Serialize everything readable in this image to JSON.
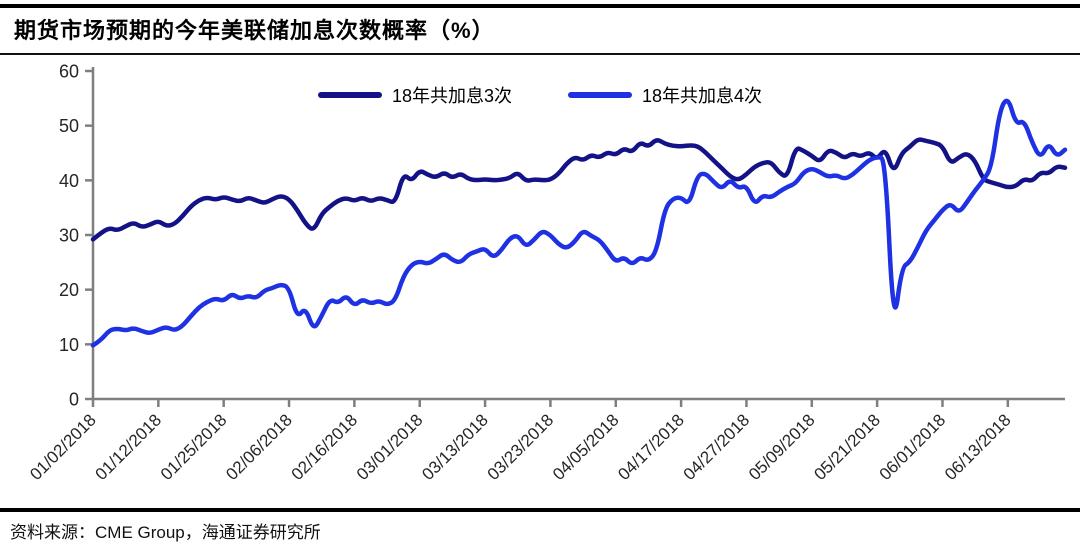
{
  "header": {
    "title": "期货市场预期的今年美联储加息次数概率（%）"
  },
  "source": {
    "label": "资料来源：",
    "text": "CME Group，海通证券研究所"
  },
  "chart_data": {
    "type": "line",
    "title": "期货市场预期的今年美联储加息次数概率（%）",
    "xlabel": "",
    "ylabel": "",
    "ylim": [
      0,
      60
    ],
    "yticks": [
      0,
      10,
      20,
      30,
      40,
      50,
      60
    ],
    "grid": false,
    "legend_position": "top-center",
    "axis_color": "#7f7f7f",
    "tick_label_color": "#262626",
    "x_tick_every": 8,
    "n_points": 120,
    "x_tick_labels": [
      "01/02/2018",
      "01/12/2018",
      "01/25/2018",
      "02/06/2018",
      "02/16/2018",
      "03/01/2018",
      "03/13/2018",
      "03/23/2018",
      "04/05/2018",
      "04/17/2018",
      "04/27/2018",
      "05/09/2018",
      "05/21/2018",
      "06/01/2018",
      "06/13/2018"
    ],
    "series": [
      {
        "name": "18年共加息3次",
        "color": "#131387",
        "values": [
          29.2,
          30.4,
          31.3,
          30.8,
          31.6,
          32.3,
          31.4,
          31.9,
          32.6,
          31.6,
          32.0,
          33.5,
          35.3,
          36.4,
          36.9,
          36.4,
          37.0,
          36.5,
          36.1,
          36.9,
          36.3,
          35.8,
          36.6,
          37.2,
          36.6,
          34.6,
          32.1,
          30.7,
          33.9,
          35.2,
          36.3,
          36.8,
          36.2,
          36.9,
          36.1,
          36.8,
          36.4,
          35.8,
          41.3,
          39.8,
          41.9,
          41.0,
          40.5,
          41.5,
          40.4,
          41.3,
          40.2,
          40.0,
          40.2,
          40.0,
          40.1,
          40.4,
          41.5,
          39.8,
          40.2,
          40.0,
          40.1,
          41.2,
          43.1,
          44.3,
          43.6,
          44.7,
          44.1,
          45.2,
          44.6,
          45.9,
          45.1,
          47.0,
          46.1,
          47.6,
          46.7,
          46.3,
          46.2,
          46.4,
          46.3,
          45.1,
          43.6,
          42.2,
          40.7,
          40.0,
          41.1,
          42.5,
          43.2,
          43.4,
          41.4,
          40.5,
          46.1,
          45.4,
          44.5,
          43.3,
          45.6,
          45.1,
          44.0,
          45.0,
          44.3,
          45.2,
          43.8,
          45.9,
          41.2,
          45.0,
          46.1,
          47.6,
          47.2,
          46.9,
          46.3,
          43.0,
          44.2,
          45.0,
          43.6,
          40.1,
          39.6,
          39.2,
          38.7,
          38.9,
          40.3,
          39.8,
          41.5,
          41.2,
          42.6,
          42.3
        ]
      },
      {
        "name": "18年共加息4次",
        "color": "#1e31e3",
        "values": [
          9.8,
          10.8,
          12.6,
          12.9,
          12.5,
          13.0,
          12.4,
          12.0,
          12.7,
          13.2,
          12.5,
          13.4,
          15.2,
          16.8,
          17.8,
          18.4,
          17.9,
          19.3,
          18.3,
          18.9,
          18.4,
          19.9,
          20.3,
          21.0,
          20.4,
          14.8,
          16.8,
          12.5,
          15.2,
          18.3,
          17.5,
          19.0,
          17.0,
          18.3,
          17.4,
          18.0,
          17.2,
          18.0,
          22.5,
          24.6,
          25.2,
          24.7,
          25.6,
          26.7,
          25.4,
          24.9,
          26.5,
          27.0,
          27.6,
          25.8,
          27.2,
          29.4,
          30.0,
          27.8,
          29.1,
          30.8,
          30.0,
          28.3,
          27.5,
          28.8,
          30.9,
          29.8,
          29.1,
          27.2,
          25.0,
          26.0,
          24.5,
          26.0,
          25.2,
          27.0,
          34.8,
          36.7,
          36.9,
          35.5,
          41.0,
          41.3,
          39.7,
          38.4,
          40.2,
          38.5,
          39.1,
          35.5,
          37.3,
          36.8,
          37.9,
          38.8,
          39.4,
          41.5,
          42.2,
          41.5,
          40.6,
          41.0,
          40.2,
          41.0,
          42.4,
          43.7,
          44.3,
          44.0,
          12.5,
          24.1,
          25.0,
          27.8,
          30.9,
          32.7,
          34.6,
          35.8,
          34.0,
          36.0,
          38.2,
          40.0,
          42.4,
          52.8,
          55.4,
          50.2,
          51.0,
          46.8,
          44.0,
          46.9,
          44.3,
          45.6
        ]
      }
    ]
  }
}
